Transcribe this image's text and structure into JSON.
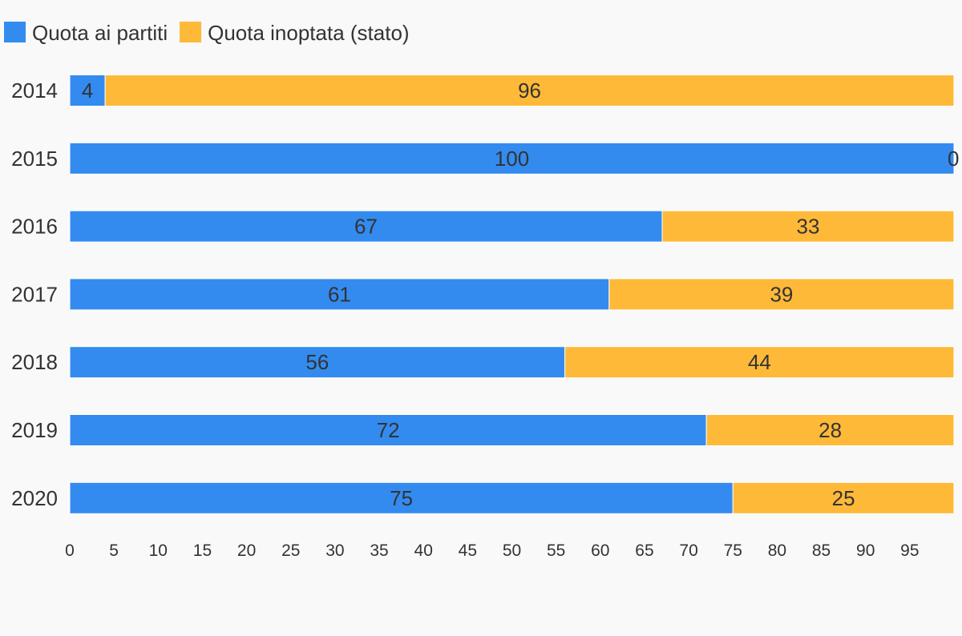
{
  "chart_data": {
    "type": "bar",
    "orientation": "horizontal",
    "stacked": true,
    "categories": [
      "2014",
      "2015",
      "2016",
      "2017",
      "2018",
      "2019",
      "2020"
    ],
    "series": [
      {
        "name": "Quota ai partiti",
        "color": "#338bef",
        "values": [
          4,
          100,
          67,
          61,
          56,
          72,
          75
        ]
      },
      {
        "name": "Quota inoptata (stato)",
        "color": "#ffb938",
        "values": [
          96,
          0,
          33,
          39,
          44,
          28,
          25
        ]
      }
    ],
    "xticks": [
      "0",
      "5",
      "10",
      "15",
      "20",
      "25",
      "30",
      "35",
      "40",
      "45",
      "50",
      "55",
      "60",
      "65",
      "70",
      "75",
      "80",
      "85",
      "90",
      "95"
    ],
    "xlim": [
      0,
      100
    ],
    "grid": false,
    "legend_position": "top-left",
    "data_labels": true
  }
}
